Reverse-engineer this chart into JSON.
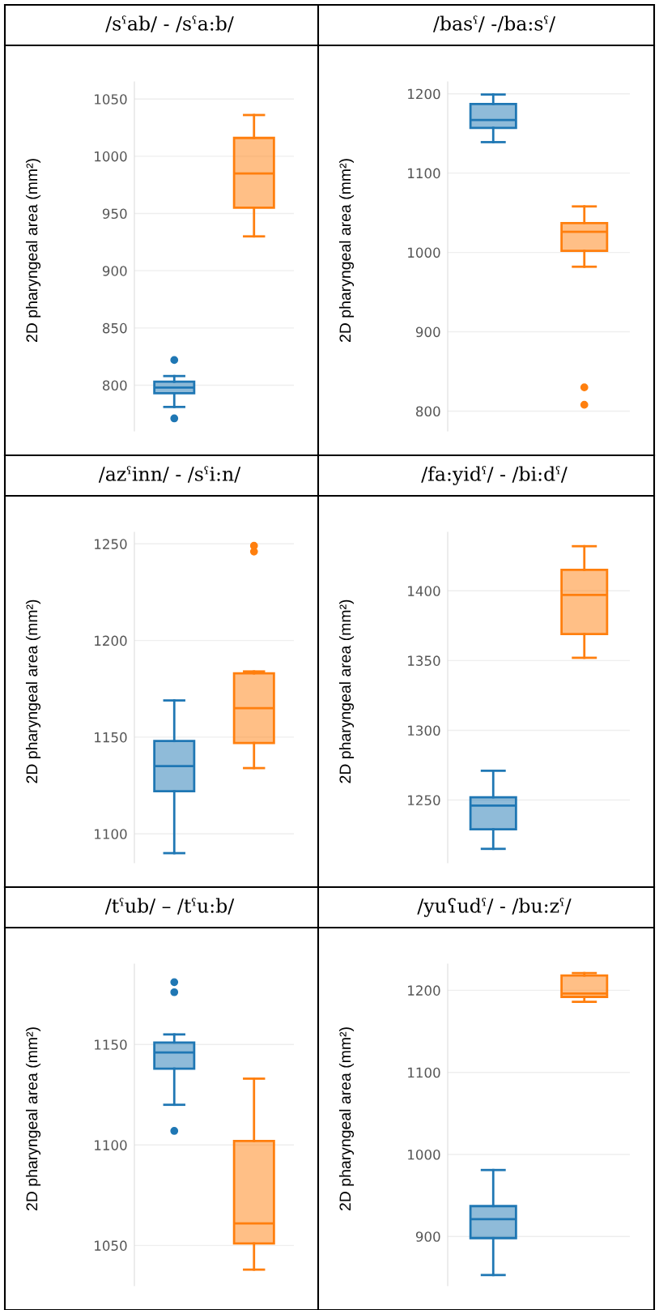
{
  "chart_data": [
    {
      "type": "box",
      "title": "/sˤab/ - /sˤa:b/",
      "ylabel": "2D pharyngeal area (mm²)",
      "categories": [
        null,
        null
      ],
      "colors": [
        "#1f77b4",
        "#ff7f0e"
      ],
      "ylim": [
        760,
        1065
      ],
      "yticks": [
        800,
        850,
        900,
        950,
        1000,
        1050
      ],
      "grid": "y",
      "tick_labels": "y",
      "boxes": [
        {
          "low": 781,
          "q1": 793,
          "median": 798,
          "q3": 803,
          "high": 808,
          "outliers": [
            822,
            771
          ]
        },
        {
          "low": 930,
          "q1": 955,
          "median": 985,
          "q3": 1016,
          "high": 1036
        }
      ]
    },
    {
      "type": "box",
      "title": "/basˤ/ -/ba:sˤ/",
      "ylabel": "2D pharyngeal area (mm²)",
      "categories": [
        null,
        null
      ],
      "colors": [
        "#1f77b4",
        "#ff7f0e"
      ],
      "ylim": [
        775,
        1215
      ],
      "yticks": [
        800,
        900,
        1000,
        1100,
        1200
      ],
      "grid": "y",
      "tick_labels": "y",
      "boxes": [
        {
          "low": 1139,
          "q1": 1157,
          "median": 1167,
          "q3": 1187,
          "high": 1199
        },
        {
          "low": 982,
          "q1": 1002,
          "median": 1026,
          "q3": 1037,
          "high": 1058,
          "outliers": [
            830,
            808
          ]
        }
      ]
    },
    {
      "type": "box",
      "title": "/azˤinn/ - /sˤi:n/",
      "ylabel": "2D pharyngeal area (mm²)",
      "categories": [
        null,
        null
      ],
      "colors": [
        "#1f77b4",
        "#ff7f0e"
      ],
      "ylim": [
        1085,
        1256
      ],
      "yticks": [
        1100,
        1150,
        1200,
        1250
      ],
      "grid": "y",
      "tick_labels": "y",
      "boxes": [
        {
          "low": 1090,
          "q1": 1122,
          "median": 1135,
          "q3": 1148,
          "high": 1169
        },
        {
          "low": 1134,
          "q1": 1147,
          "median": 1165,
          "q3": 1183,
          "high": 1184,
          "outliers": [
            1249,
            1246
          ]
        }
      ]
    },
    {
      "type": "box",
      "title": "/fa:yidˤ/ - /bi:dˤ/",
      "ylabel": "2D pharyngeal area (mm²)",
      "categories": [
        null,
        null
      ],
      "colors": [
        "#1f77b4",
        "#ff7f0e"
      ],
      "ylim": [
        1205,
        1442
      ],
      "yticks": [
        1250,
        1300,
        1350,
        1400
      ],
      "grid": "y",
      "tick_labels": "y",
      "boxes": [
        {
          "low": 1215,
          "q1": 1229,
          "median": 1246,
          "q3": 1252,
          "high": 1271
        },
        {
          "low": 1352,
          "q1": 1369,
          "median": 1397,
          "q3": 1415,
          "high": 1432
        }
      ]
    },
    {
      "type": "box",
      "title": "/tˤub/ – /tˤu:b/",
      "ylabel": "2D pharyngeal area (mm²)",
      "categories": [
        null,
        null
      ],
      "colors": [
        "#1f77b4",
        "#ff7f0e"
      ],
      "ylim": [
        1030,
        1190
      ],
      "yticks": [
        1050,
        1100,
        1150
      ],
      "grid": "y",
      "tick_labels": "y",
      "boxes": [
        {
          "low": 1120,
          "q1": 1138,
          "median": 1146,
          "q3": 1151,
          "high": 1155,
          "outliers": [
            1181,
            1176,
            1107
          ]
        },
        {
          "low": 1038,
          "q1": 1051,
          "median": 1061,
          "q3": 1102,
          "high": 1133
        }
      ]
    },
    {
      "type": "box",
      "title": "/yuʕudˤ/ - /bu:zˤ/",
      "ylabel": "2D pharyngeal area (mm²)",
      "categories": [
        null,
        null
      ],
      "colors": [
        "#1f77b4",
        "#ff7f0e"
      ],
      "ylim": [
        840,
        1232
      ],
      "yticks": [
        900,
        1000,
        1100,
        1200
      ],
      "grid": "y",
      "tick_labels": "y",
      "boxes": [
        {
          "low": 853,
          "q1": 898,
          "median": 921,
          "q3": 937,
          "high": 981
        },
        {
          "low": 1186,
          "q1": 1192,
          "median": 1196,
          "q3": 1218,
          "high": 1221
        }
      ]
    }
  ]
}
